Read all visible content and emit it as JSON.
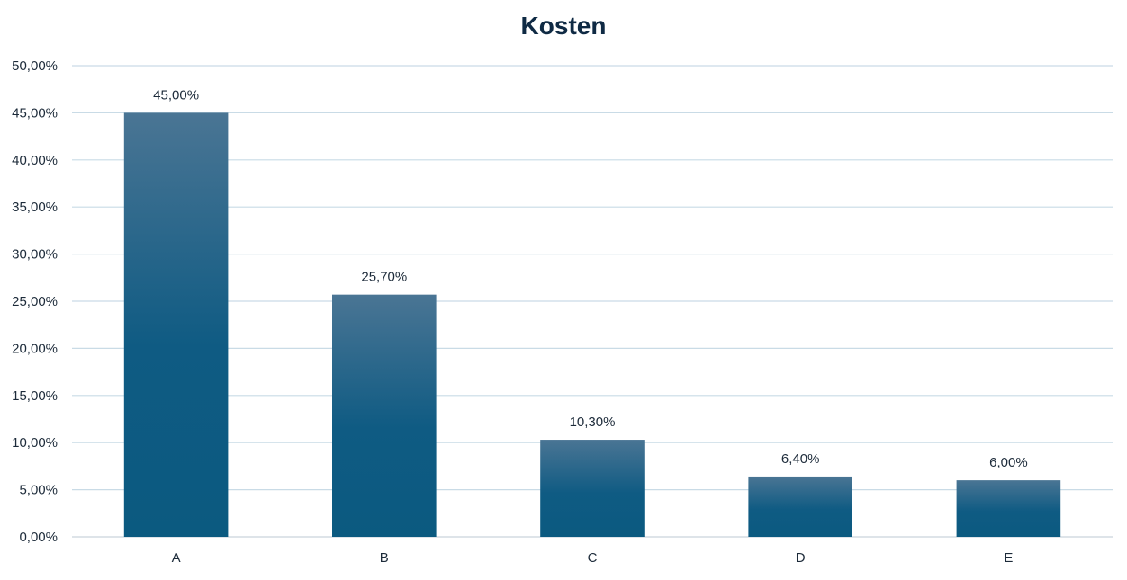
{
  "chart_data": {
    "type": "bar",
    "title": "Kosten",
    "xlabel": "",
    "ylabel": "",
    "categories": [
      "A",
      "B",
      "C",
      "D",
      "E"
    ],
    "values": [
      45.0,
      25.7,
      10.3,
      6.4,
      6.0
    ],
    "data_labels": [
      "45,00%",
      "25,70%",
      "10,30%",
      "6,40%",
      "6,00%"
    ],
    "ylim": [
      0,
      50
    ],
    "y_ticks": [
      0,
      5,
      10,
      15,
      20,
      25,
      30,
      35,
      40,
      45,
      50
    ],
    "y_tick_labels": [
      "0,00%",
      "5,00%",
      "10,00%",
      "15,00%",
      "20,00%",
      "25,00%",
      "30,00%",
      "35,00%",
      "40,00%",
      "45,00%",
      "50,00%"
    ],
    "grid": true,
    "legend": "none",
    "colors": {
      "bar_top": "#4a7594",
      "bar_mid": "#0f5b83",
      "bar_bottom": "#0b5a80",
      "grid": "#c9dbe6",
      "title": "#0f2a44",
      "text": "#1d2b3a"
    }
  }
}
